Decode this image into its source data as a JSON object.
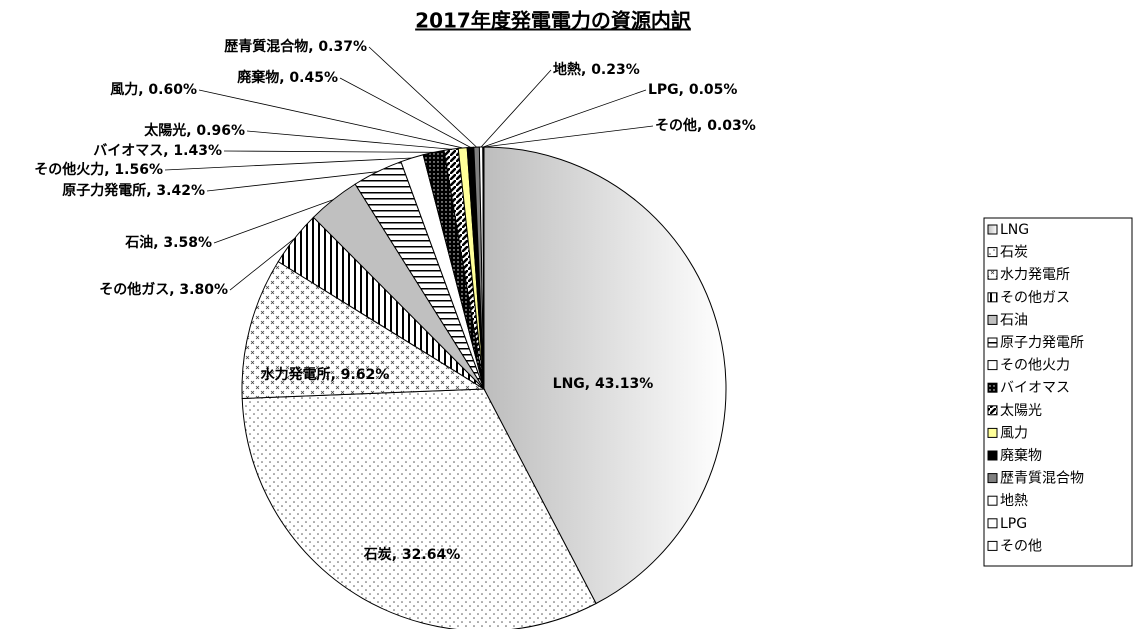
{
  "chart_data": {
    "type": "pie",
    "title": "2017年度発電電力の資源内訳",
    "categories": [
      "LNG",
      "石炭",
      "水力発電所",
      "その他ガス",
      "石油",
      "原子力発電所",
      "その他火力",
      "バイオマス",
      "太陽光",
      "風力",
      "廃棄物",
      "歴青質混合物",
      "地熱",
      "LPG",
      "その他"
    ],
    "values": [
      43.13,
      32.64,
      9.62,
      3.8,
      3.58,
      3.42,
      1.56,
      1.43,
      0.96,
      0.6,
      0.45,
      0.37,
      0.23,
      0.05,
      0.03
    ],
    "value_labels": [
      "LNG, 43.13%",
      "石炭, 32.64%",
      "水力発電所, 9.62%",
      "その他ガス, 3.80%",
      "石油, 3.58%",
      "原子力発電所, 3.42%",
      "その他火力, 1.56%",
      "バイオマス, 1.43%",
      "太陽光, 0.96%",
      "風力, 0.60%",
      "廃棄物, 0.45%",
      "歴青質混合物, 0.37%",
      "地熱, 0.23%",
      "LPG, 0.05%",
      "その他, 0.03%"
    ],
    "colors": [
      "#f4f4f4",
      "#ffffff",
      "#ffffff",
      "#ffffff",
      "#c0c0c0",
      "#ffffff",
      "#ffffff",
      "#000000",
      "#ffffff",
      "#ffff99",
      "#000000",
      "#808080",
      "#ffffff",
      "#ffffff",
      "#ffffff"
    ],
    "patterns": [
      "grad",
      "dots",
      "cross",
      "vstripe",
      null,
      "hstripe",
      null,
      "dark",
      "diag",
      null,
      null,
      null,
      null,
      null,
      null
    ],
    "legend": "right"
  }
}
